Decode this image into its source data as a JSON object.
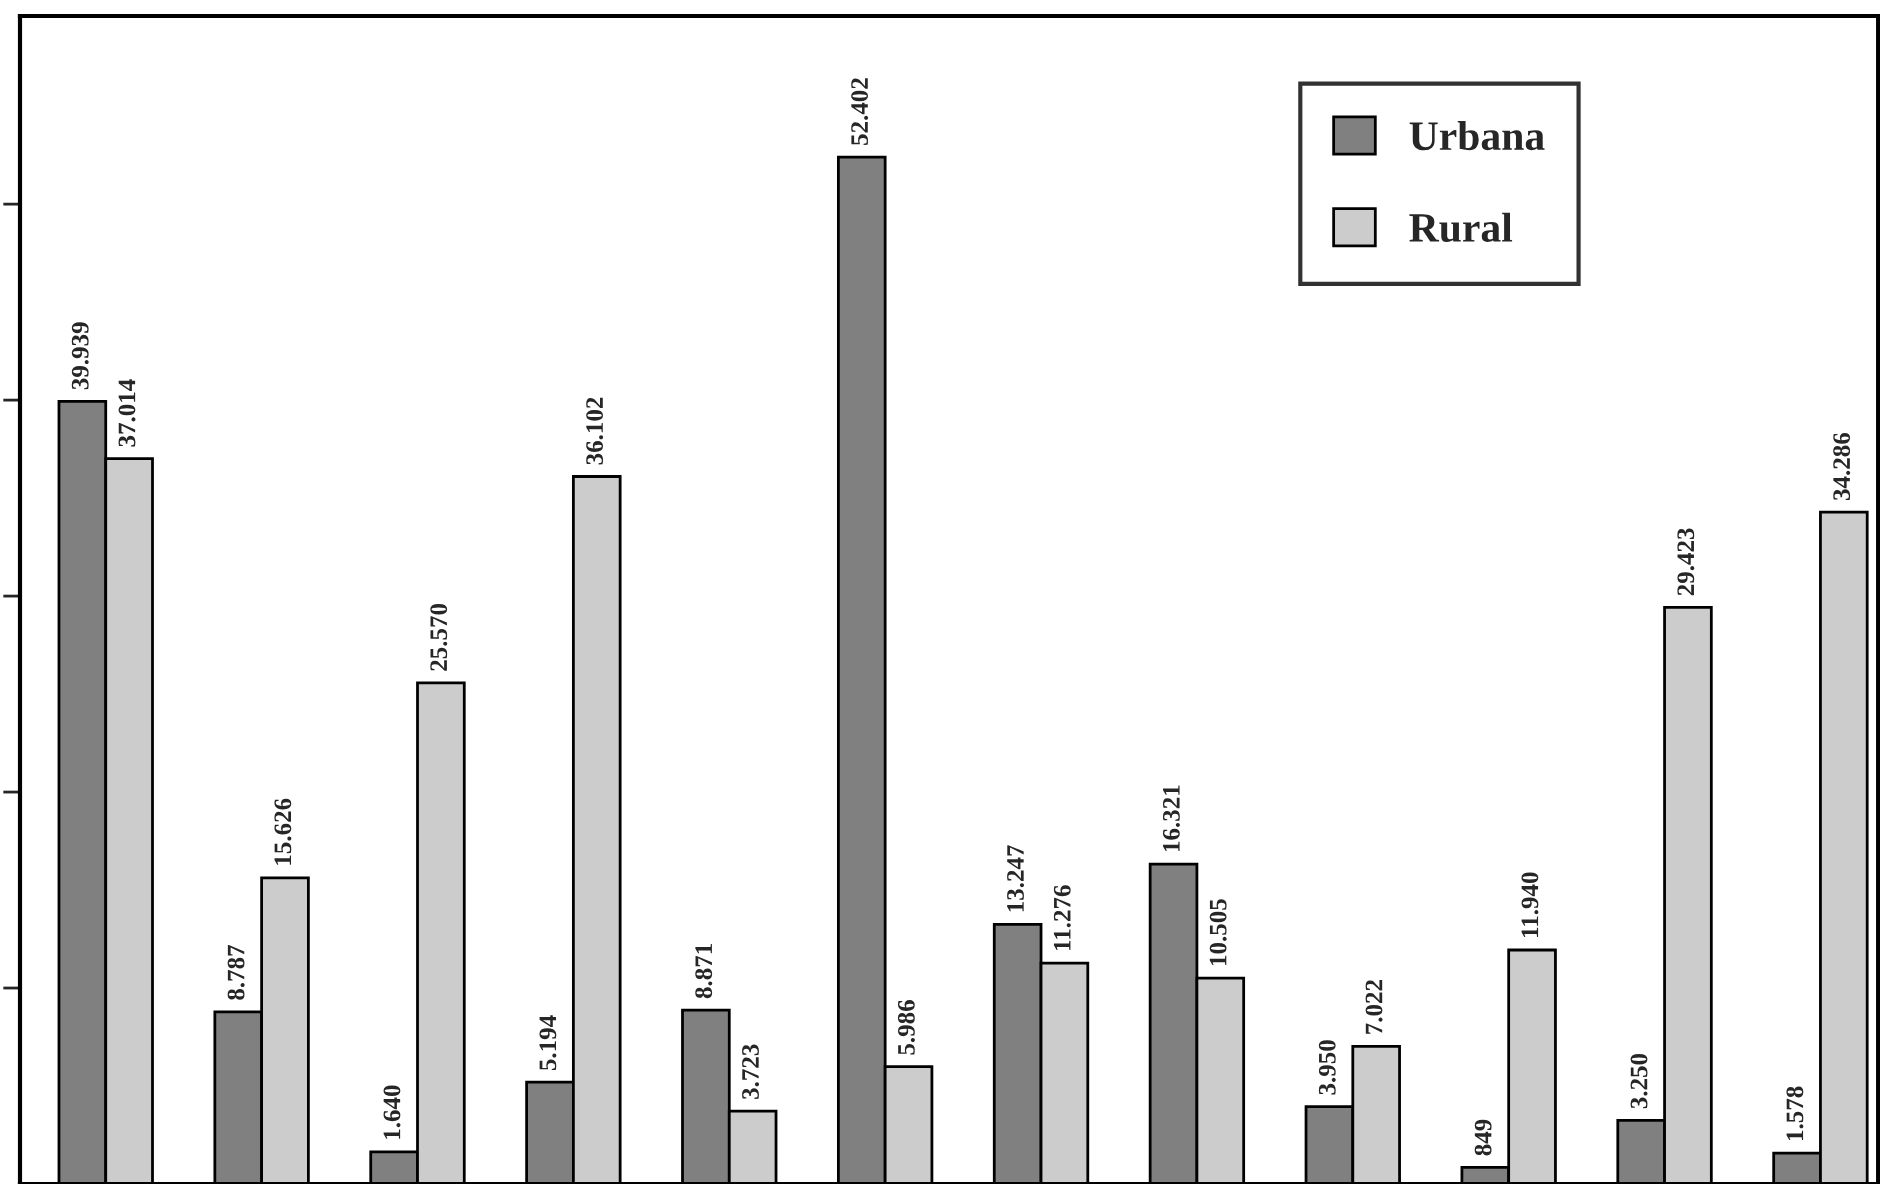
{
  "chart_data": {
    "type": "bar",
    "categories": [
      null,
      null,
      null,
      null,
      null,
      null,
      null,
      null,
      null,
      null,
      null,
      null
    ],
    "series": [
      {
        "name": "Urbana",
        "color": "#808080",
        "values": [
          39939,
          8787,
          1640,
          5194,
          8871,
          52402,
          13247,
          16321,
          3950,
          849,
          3250,
          1578
        ],
        "value_labels": [
          "39.939",
          "8.787",
          "1.640",
          "5.194",
          "8.871",
          "52.402",
          "13.247",
          "16.321",
          "3.950",
          "849",
          "3.250",
          "1.578"
        ]
      },
      {
        "name": "Rural",
        "color": "#cccccc",
        "values": [
          37014,
          15626,
          25570,
          36102,
          3723,
          5986,
          11276,
          10505,
          7022,
          11940,
          29423,
          34286
        ],
        "value_labels": [
          "37.014",
          "15.626",
          "25.570",
          "36.102",
          "3.723",
          "5.986",
          "11.276",
          "10.505",
          "7.022",
          "11.940",
          "29.423",
          "34.286"
        ]
      }
    ],
    "ylim": [
      0,
      59600
    ],
    "yticks": [
      {
        "value": 10000,
        "label": null
      },
      {
        "value": 20000,
        "label": null
      },
      {
        "value": 30000,
        "label": null
      },
      {
        "value": 40000,
        "label": null
      },
      {
        "value": 50000,
        "label": null
      }
    ],
    "grid": false,
    "legend": "top right"
  }
}
